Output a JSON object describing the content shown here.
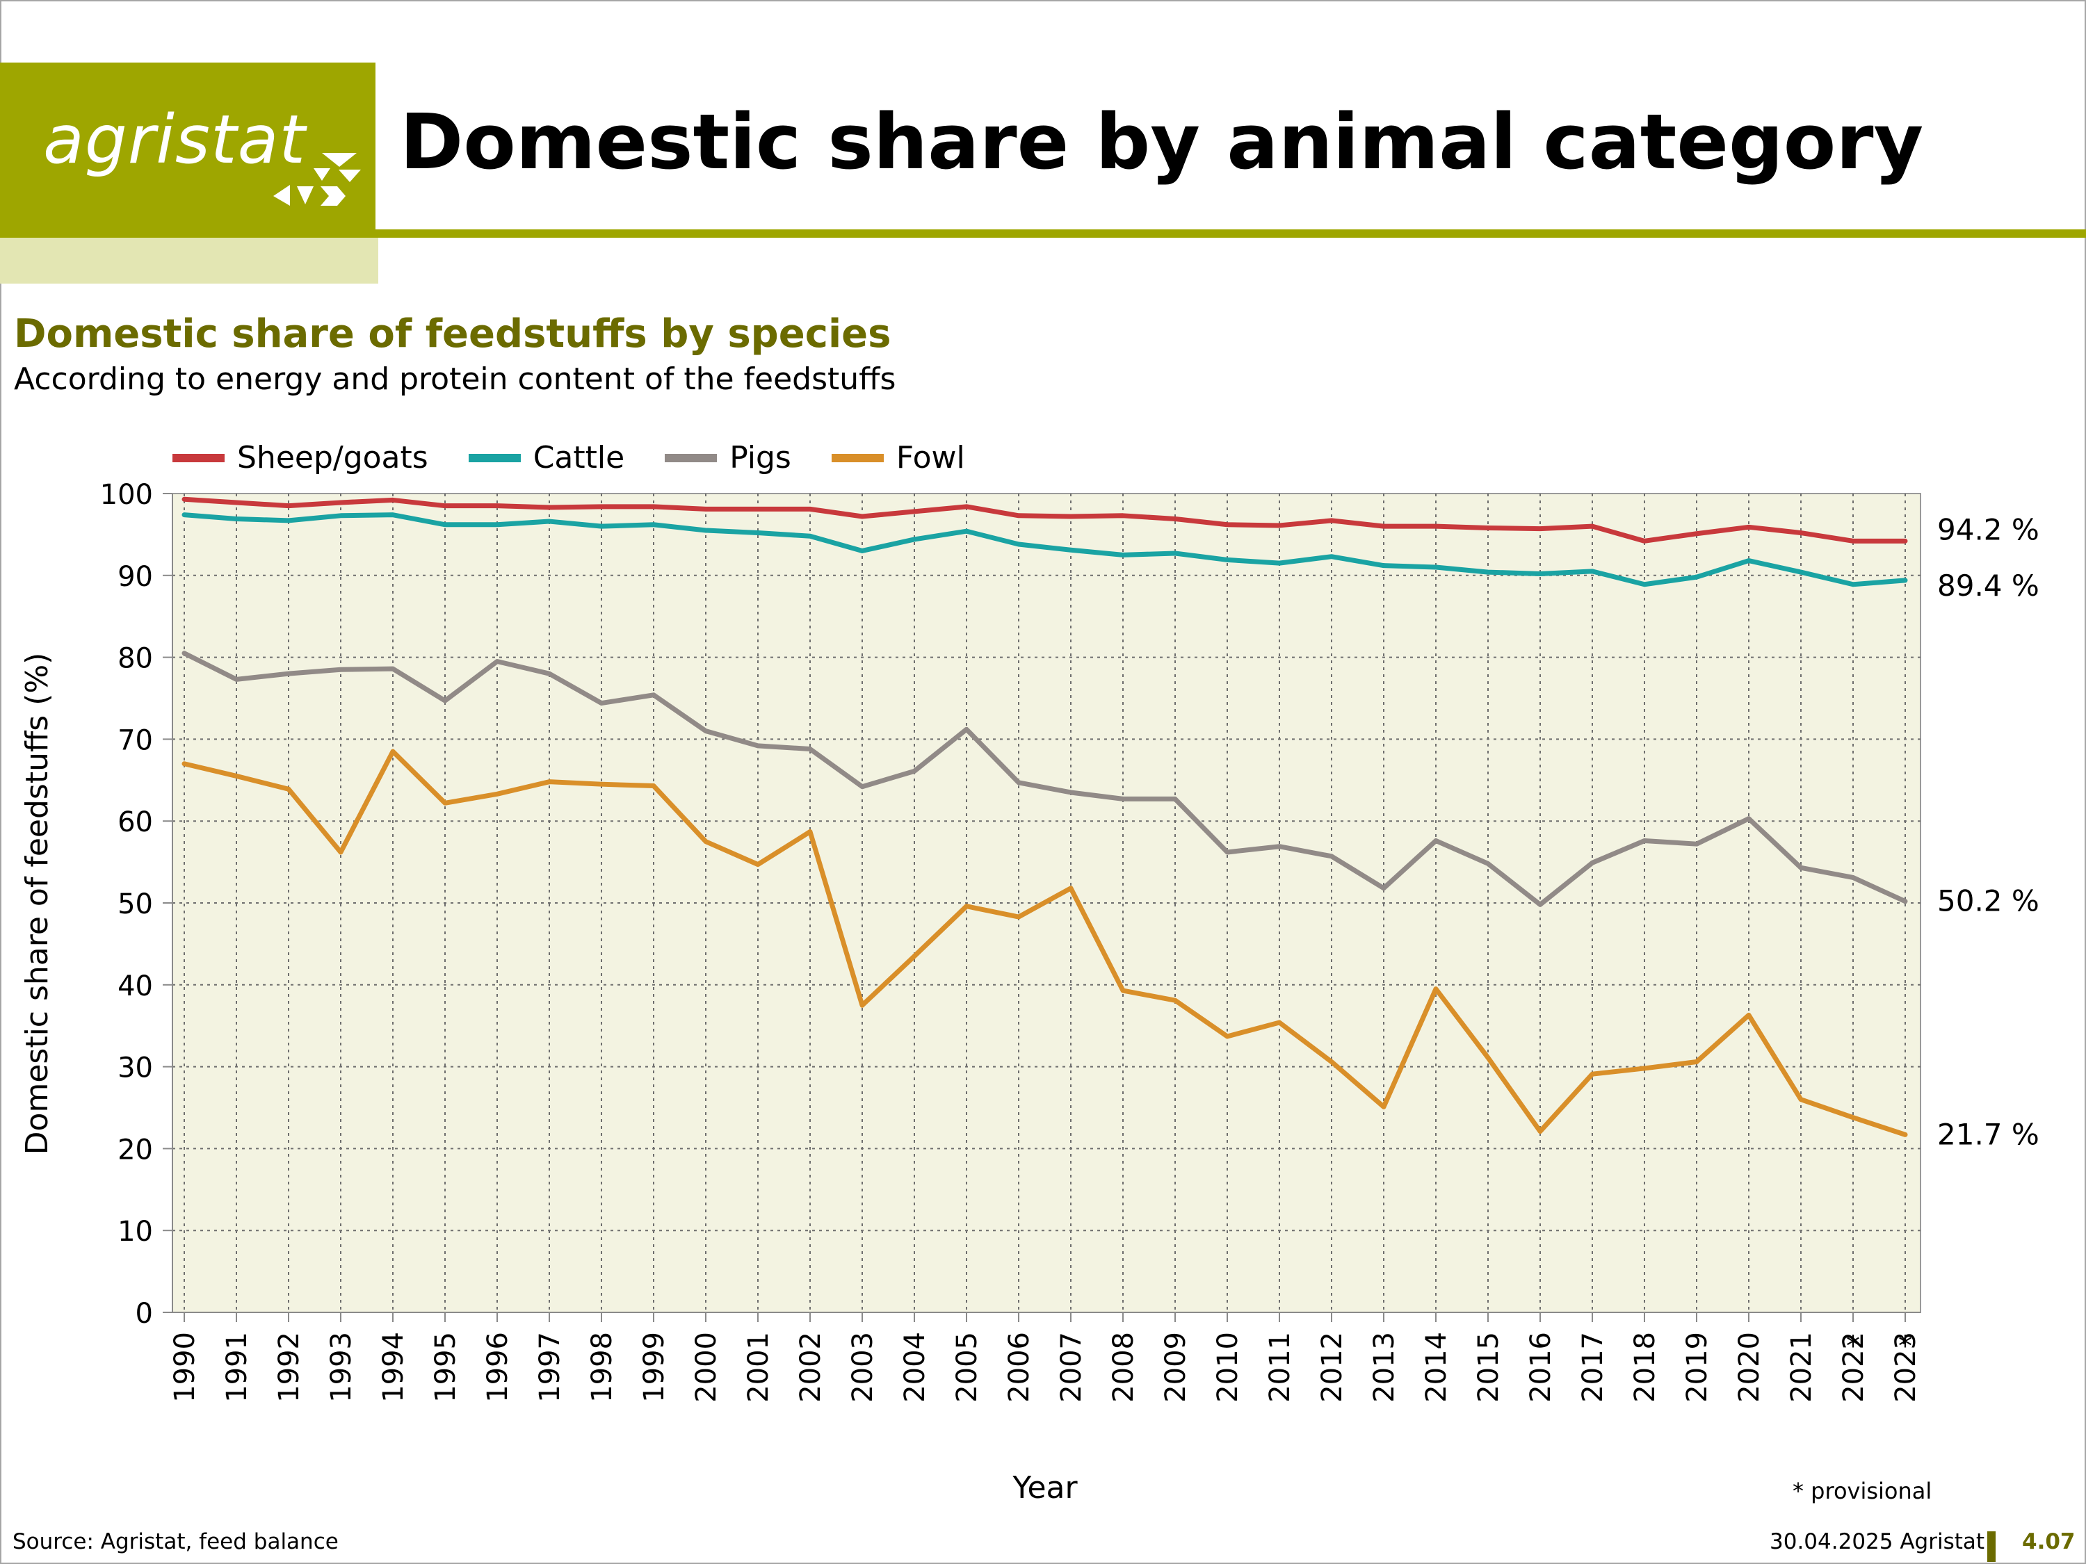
{
  "header": {
    "logo_text": "agristat",
    "title": "Domestic share by animal category"
  },
  "colors": {
    "brand": "#9ea600",
    "brand_pale": "#e3e6b3",
    "plot_bg": "#f3f3e1",
    "subtitle": "#6b6b00"
  },
  "chart_data": {
    "type": "line",
    "title": "Domestic share of feedstuffs by species",
    "subtitle": "According to energy and protein content of the feedstuffs",
    "xlabel": "Year",
    "ylabel": "Domestic share of feedstuffs (%)",
    "ylim": [
      0,
      100
    ],
    "yticks": [
      "0",
      "10",
      "20",
      "30",
      "40",
      "50",
      "60",
      "70",
      "80",
      "90",
      "100"
    ],
    "grid": true,
    "legend_position": "top-left",
    "x": [
      "1990",
      "1991",
      "1992",
      "1993",
      "1994",
      "1995",
      "1996",
      "1997",
      "1998",
      "1999",
      "2000",
      "2001",
      "2002",
      "2003",
      "2004",
      "2005",
      "2006",
      "2007",
      "2008",
      "2009",
      "2010",
      "2011",
      "2012",
      "2013",
      "2014",
      "2015",
      "2016",
      "2017",
      "2018",
      "2019",
      "2020",
      "2021",
      "2022",
      "2023"
    ],
    "provisional_marks": [
      "",
      "",
      "",
      "",
      "",
      "",
      "",
      "",
      "",
      "",
      "",
      "",
      "",
      "",
      "",
      "",
      "",
      "",
      "",
      "",
      "",
      "",
      "",
      "",
      "",
      "",
      "",
      "",
      "",
      "",
      "",
      "",
      "*",
      "*"
    ],
    "series": [
      {
        "name": "Sheep/goats",
        "color": "#c8393c",
        "end_label": "94.2 %",
        "values": [
          99.3,
          98.9,
          98.5,
          98.9,
          99.2,
          98.5,
          98.5,
          98.3,
          98.4,
          98.4,
          98.1,
          98.1,
          98.1,
          97.2,
          97.8,
          98.4,
          97.3,
          97.2,
          97.3,
          96.9,
          96.2,
          96.1,
          96.7,
          96.0,
          96.0,
          95.8,
          95.7,
          96.0,
          94.2,
          95.1,
          95.9,
          95.2,
          94.2,
          94.2
        ]
      },
      {
        "name": "Cattle",
        "color": "#1aa3a3",
        "end_label": "89.4 %",
        "values": [
          97.4,
          96.9,
          96.7,
          97.3,
          97.4,
          96.2,
          96.2,
          96.6,
          96.0,
          96.2,
          95.5,
          95.2,
          94.8,
          93.0,
          94.4,
          95.4,
          93.8,
          93.1,
          92.5,
          92.7,
          91.9,
          91.5,
          92.3,
          91.2,
          91.0,
          90.4,
          90.2,
          90.5,
          88.9,
          89.8,
          91.8,
          90.4,
          88.9,
          89.4
        ]
      },
      {
        "name": "Pigs",
        "color": "#918a87",
        "end_label": "50.2 %",
        "values": [
          80.5,
          77.3,
          78.0,
          78.5,
          78.6,
          74.7,
          79.5,
          78.0,
          74.4,
          75.4,
          71.0,
          69.2,
          68.8,
          64.2,
          66.1,
          71.2,
          64.7,
          63.5,
          62.7,
          62.7,
          56.2,
          56.9,
          55.7,
          51.8,
          57.6,
          54.8,
          49.8,
          54.9,
          57.6,
          57.2,
          60.3,
          54.3,
          53.1,
          50.2
        ]
      },
      {
        "name": "Fowl",
        "color": "#d98f29",
        "end_label": "21.7 %",
        "values": [
          67.0,
          65.5,
          63.9,
          56.2,
          68.5,
          62.2,
          63.3,
          64.8,
          64.5,
          64.3,
          57.5,
          54.7,
          58.7,
          37.5,
          43.5,
          49.6,
          48.3,
          51.8,
          39.3,
          38.1,
          33.7,
          35.4,
          30.6,
          25.1,
          39.5,
          31.1,
          22.1,
          29.1,
          29.8,
          30.6,
          36.3,
          26.0,
          23.8,
          21.7
        ]
      }
    ]
  },
  "notes": {
    "provisional": "* provisional"
  },
  "footer": {
    "source": "Source: Agristat, feed balance",
    "date": "30.04.2025 Agristat",
    "page": "4.07"
  }
}
